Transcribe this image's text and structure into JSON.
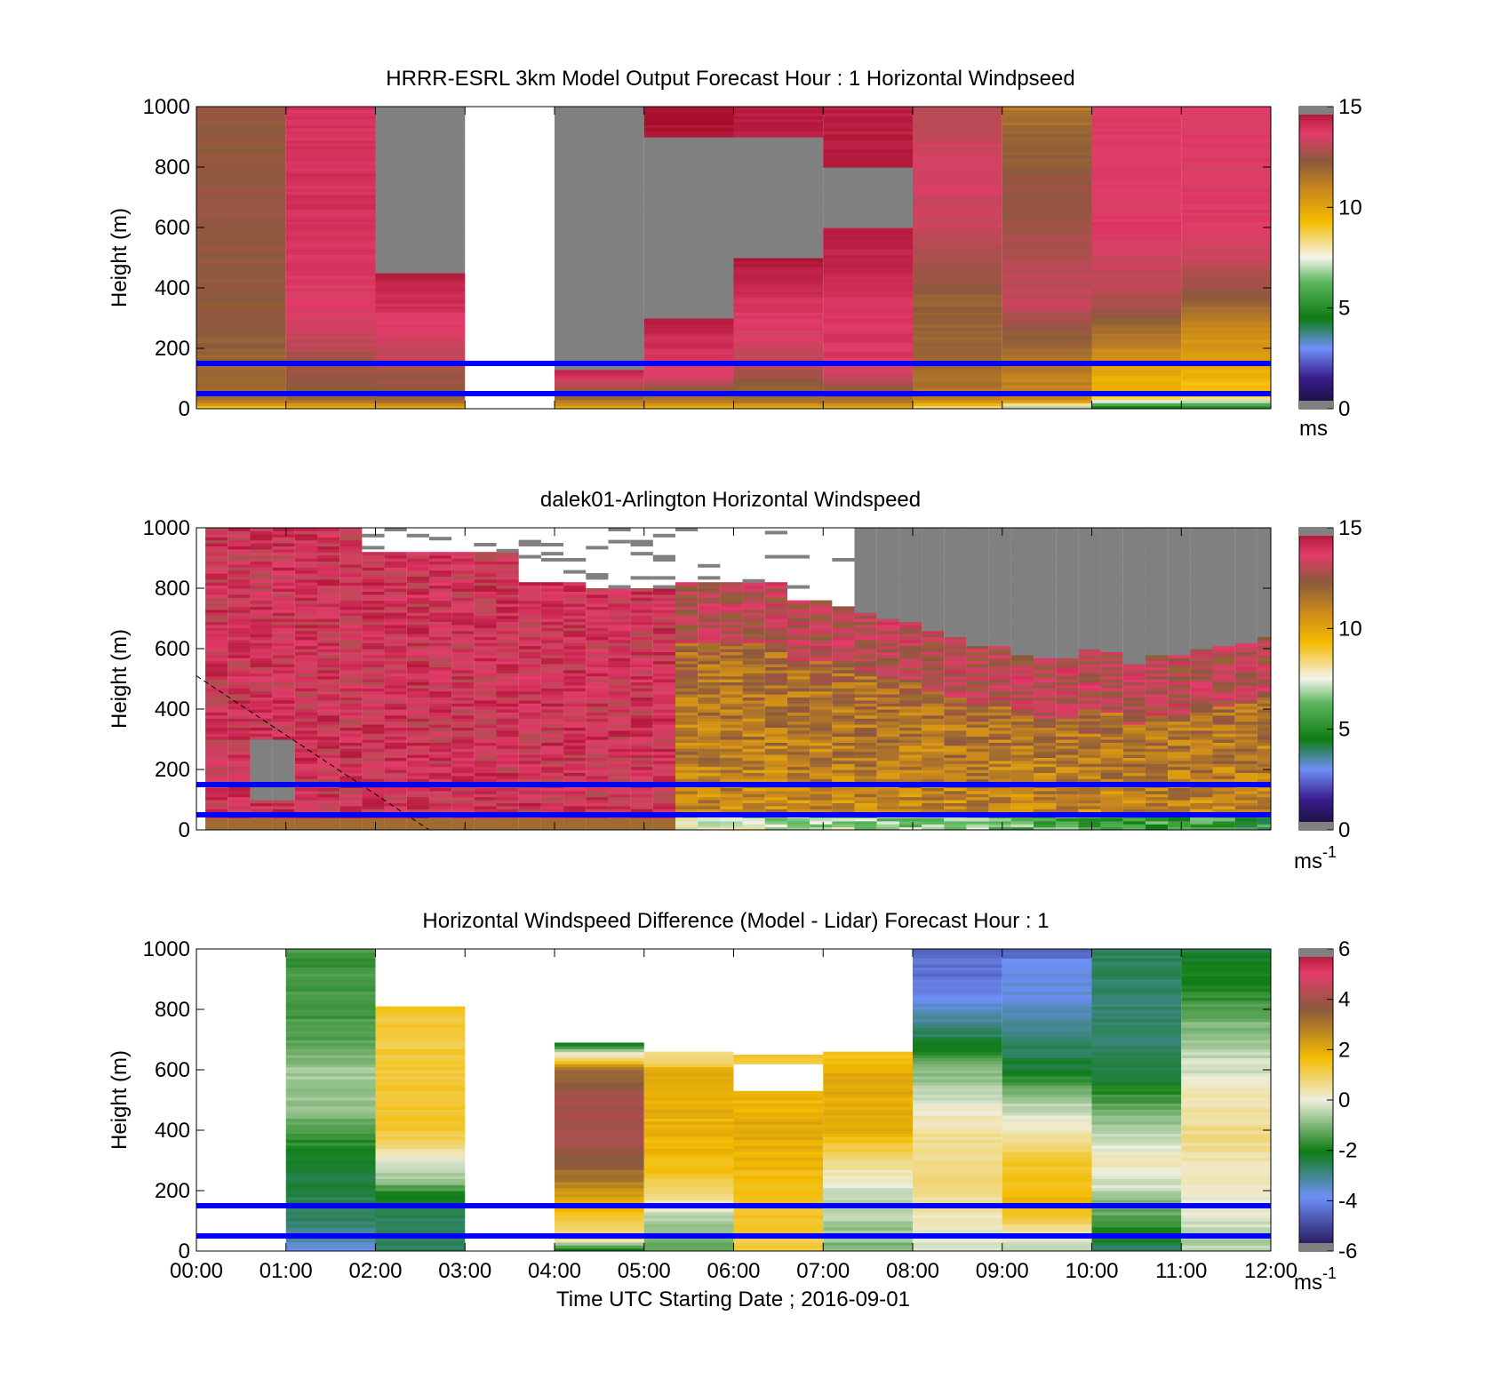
{
  "figure": {
    "xlabel": "Time UTC  Starting Date ; 2016-09-01",
    "x_ticks": [
      "00:00",
      "01:00",
      "02:00",
      "03:00",
      "04:00",
      "05:00",
      "06:00",
      "07:00",
      "08:00",
      "09:00",
      "10:00",
      "11:00",
      "12:00"
    ]
  },
  "colors": {
    "missing": "#808080",
    "reference_line": "#0000ff",
    "speed_scale": [
      "#121030",
      "#3a1b8c",
      "#6f8ff7",
      "#0e7d12",
      "#5eb65e",
      "#f4f4ec",
      "#f4bb00",
      "#cc8a1b",
      "#8b5a3c",
      "#e23c6a",
      "#a30d2a"
    ],
    "diff_scale": [
      "#1c0c4c",
      "#6f8ff7",
      "#0e7d12",
      "#eeeedd",
      "#f4bb00",
      "#8b5a3c",
      "#e23c6a"
    ]
  },
  "chart_data": [
    {
      "type": "heatmap",
      "title": "HRRR-ESRL 3km Model Output   Forecast Hour : 1 Horizontal Windpseed",
      "ylabel": "Height (m)",
      "xlim": [
        0,
        12
      ],
      "ylim": [
        0,
        1000
      ],
      "y_ticks": [
        "0",
        "200",
        "400",
        "600",
        "800",
        "1000"
      ],
      "colorbar": {
        "range": [
          0,
          15
        ],
        "ticks": [
          "0",
          "5",
          "10",
          "15"
        ],
        "unit": "ms"
      },
      "reference_lines_m": [
        50,
        150
      ],
      "bands": [
        {
          "x": [
            0,
            1
          ],
          "gaps": [],
          "stops": [
            [
              0,
              8.5
            ],
            [
              30,
              11.5
            ],
            [
              80,
              11.5
            ],
            [
              300,
              12.0
            ],
            [
              700,
              12.2
            ],
            [
              1000,
              12.0
            ]
          ]
        },
        {
          "x": [
            1,
            2
          ],
          "gaps": [],
          "stops": [
            [
              0,
              8.8
            ],
            [
              30,
              11.8
            ],
            [
              150,
              12.4
            ],
            [
              300,
              13.4
            ],
            [
              600,
              13.8
            ],
            [
              1000,
              13.8
            ]
          ]
        },
        {
          "x": [
            2,
            3
          ],
          "gaps": [
            [
              450,
              1000,
              "missing"
            ]
          ],
          "stops": [
            [
              0,
              9.0
            ],
            [
              30,
              11.6
            ],
            [
              150,
              12.8
            ],
            [
              300,
              13.6
            ],
            [
              450,
              14.6
            ]
          ]
        },
        {
          "x": [
            3,
            4
          ],
          "gaps": [
            [
              0,
              1000,
              "blank"
            ]
          ],
          "stops": []
        },
        {
          "x": [
            4,
            5
          ],
          "gaps": [
            [
              130,
              1000,
              "missing"
            ]
          ],
          "stops": [
            [
              0,
              9.0
            ],
            [
              30,
              11.5
            ],
            [
              130,
              14.3
            ]
          ]
        },
        {
          "x": [
            5,
            6
          ],
          "gaps": [
            [
              300,
              900,
              "missing"
            ]
          ],
          "stops": [
            [
              0,
              9.0
            ],
            [
              30,
              11.0
            ],
            [
              100,
              13.2
            ],
            [
              300,
              14.4
            ],
            [
              900,
              14.8
            ],
            [
              1000,
              14.8
            ]
          ]
        },
        {
          "x": [
            6,
            7
          ],
          "gaps": [
            [
              500,
              900,
              "missing"
            ]
          ],
          "stops": [
            [
              0,
              9.0
            ],
            [
              30,
              11.5
            ],
            [
              200,
              13.2
            ],
            [
              400,
              14.0
            ],
            [
              500,
              14.8
            ],
            [
              900,
              14.5
            ],
            [
              1000,
              14.5
            ]
          ]
        },
        {
          "x": [
            7,
            8
          ],
          "gaps": [
            [
              600,
              800,
              "missing"
            ]
          ],
          "stops": [
            [
              0,
              9.0
            ],
            [
              30,
              11.5
            ],
            [
              150,
              13.6
            ],
            [
              400,
              13.9
            ],
            [
              600,
              14.6
            ],
            [
              800,
              14.8
            ],
            [
              900,
              14.5
            ],
            [
              1000,
              14.4
            ]
          ]
        },
        {
          "x": [
            8,
            9
          ],
          "gaps": [],
          "stops": [
            [
              0,
              7.5
            ],
            [
              30,
              11.0
            ],
            [
              150,
              11.5
            ],
            [
              350,
              11.8
            ],
            [
              600,
              13.0
            ],
            [
              800,
              13.4
            ],
            [
              1000,
              12.6
            ]
          ]
        },
        {
          "x": [
            9,
            10
          ],
          "gaps": [],
          "stops": [
            [
              0,
              6.0
            ],
            [
              30,
              10.5
            ],
            [
              150,
              11.0
            ],
            [
              350,
              13.0
            ],
            [
              600,
              12.4
            ],
            [
              900,
              11.8
            ],
            [
              1000,
              11.0
            ]
          ]
        },
        {
          "x": [
            10,
            11
          ],
          "gaps": [],
          "stops": [
            [
              0,
              4.0
            ],
            [
              40,
              9.0
            ],
            [
              120,
              9.6
            ],
            [
              200,
              10.6
            ],
            [
              350,
              12.6
            ],
            [
              600,
              13.6
            ],
            [
              1000,
              13.4
            ]
          ]
        },
        {
          "x": [
            11,
            12
          ],
          "gaps": [],
          "stops": [
            [
              0,
              4.2
            ],
            [
              40,
              8.6
            ],
            [
              120,
              9.4
            ],
            [
              250,
              10.4
            ],
            [
              400,
              12.4
            ],
            [
              600,
              13.6
            ],
            [
              1000,
              13.4
            ]
          ]
        }
      ]
    },
    {
      "type": "heatmap",
      "title": "dalek01-Arlington  Horizontal Windspeed",
      "ylabel": "Height (m)",
      "xlim": [
        0,
        12
      ],
      "ylim": [
        0,
        1000
      ],
      "y_ticks": [
        "0",
        "200",
        "400",
        "600",
        "800",
        "1000"
      ],
      "colorbar": {
        "range": [
          0,
          15
        ],
        "ticks": [
          "0",
          "5",
          "10",
          "15"
        ],
        "unit": "ms",
        "unit_exponent": "-1"
      },
      "reference_lines_m": [
        50,
        150
      ],
      "dashed_line": {
        "x": [
          0,
          2.6
        ],
        "y": [
          510,
          0
        ]
      },
      "col_width_h": 0.25,
      "col_start_h": 0.1,
      "column_tops_m": [
        1000,
        1000,
        1000,
        1000,
        1000,
        1000,
        1000,
        920,
        920,
        920,
        920,
        920,
        920,
        920,
        820,
        820,
        820,
        800,
        800,
        800,
        800,
        820,
        820,
        820,
        820,
        820,
        760,
        760,
        740,
        720,
        700,
        690,
        660,
        640,
        610,
        610,
        580,
        570,
        570,
        600,
        590,
        550,
        580,
        580,
        600,
        610,
        620,
        640
      ],
      "low_speed_start_h": 5.4,
      "low_missing_rows": {
        "x": [
          0.6,
          1.0
        ],
        "y": [
          100,
          300
        ]
      },
      "upper_missing_h": 7.4
    },
    {
      "type": "heatmap",
      "title": "Horizontal Windspeed Difference (Model - Lidar) Forecast Hour : 1",
      "ylabel": "Height (m)",
      "xlim": [
        0,
        12
      ],
      "ylim": [
        0,
        1000
      ],
      "y_ticks": [
        "0",
        "200",
        "400",
        "600",
        "800",
        "1000"
      ],
      "colorbar": {
        "range": [
          -6,
          6
        ],
        "ticks": [
          "-6",
          "-4",
          "-2",
          "0",
          "2",
          "4",
          "6"
        ],
        "unit": "ms",
        "unit_exponent": "-1"
      },
      "reference_lines_m": [
        50,
        150
      ],
      "bands": [
        {
          "x": [
            0,
            1
          ],
          "gaps": [
            [
              0,
              1000,
              "blank"
            ]
          ],
          "stops": []
        },
        {
          "x": [
            1,
            2
          ],
          "gaps": [],
          "stops": [
            [
              0,
              -4.0
            ],
            [
              80,
              -2.8
            ],
            [
              200,
              -2.4
            ],
            [
              300,
              -2.2
            ],
            [
              450,
              -1.0
            ],
            [
              600,
              -0.6
            ],
            [
              700,
              -1.4
            ],
            [
              1000,
              -1.6
            ]
          ]
        },
        {
          "x": [
            2,
            3
          ],
          "gaps": [
            [
              810,
              1000,
              "blank"
            ]
          ],
          "stops": [
            [
              0,
              -2.8
            ],
            [
              150,
              -2.6
            ],
            [
              250,
              -0.6
            ],
            [
              330,
              0.4
            ],
            [
              400,
              1.6
            ],
            [
              600,
              1.4
            ],
            [
              810,
              1.6
            ]
          ]
        },
        {
          "x": [
            3,
            4
          ],
          "gaps": [
            [
              0,
              1000,
              "blank"
            ]
          ],
          "stops": []
        },
        {
          "x": [
            4,
            5
          ],
          "gaps": [
            [
              690,
              1000,
              "blank"
            ]
          ],
          "stops": [
            [
              0,
              -2.6
            ],
            [
              40,
              0.8
            ],
            [
              100,
              1.5
            ],
            [
              250,
              3.5
            ],
            [
              350,
              4.6
            ],
            [
              500,
              4.6
            ],
            [
              600,
              3.6
            ],
            [
              690,
              -2.4
            ]
          ]
        },
        {
          "x": [
            5,
            6
          ],
          "gaps": [
            [
              660,
              1000,
              "blank"
            ]
          ],
          "stops": [
            [
              0,
              -1.5
            ],
            [
              120,
              -0.4
            ],
            [
              200,
              1.2
            ],
            [
              300,
              2.0
            ],
            [
              600,
              2.4
            ],
            [
              620,
              1.2
            ],
            [
              660,
              0.6
            ]
          ]
        },
        {
          "x": [
            6,
            7
          ],
          "gaps": [
            [
              530,
              620,
              "blank"
            ],
            [
              650,
              1000,
              "blank"
            ]
          ],
          "stops": [
            [
              0,
              1.4
            ],
            [
              200,
              1.8
            ],
            [
              400,
              2.4
            ],
            [
              530,
              2.0
            ],
            [
              620,
              1.6
            ],
            [
              650,
              1.4
            ]
          ]
        },
        {
          "x": [
            7,
            8
          ],
          "gaps": [
            [
              660,
              1000,
              "blank"
            ]
          ],
          "stops": [
            [
              0,
              -1.0
            ],
            [
              200,
              -0.2
            ],
            [
              300,
              0.8
            ],
            [
              400,
              2.2
            ],
            [
              600,
              2.4
            ],
            [
              660,
              1.6
            ]
          ]
        },
        {
          "x": [
            8,
            9
          ],
          "gaps": [],
          "stops": [
            [
              0,
              -0.4
            ],
            [
              200,
              0.8
            ],
            [
              400,
              0.6
            ],
            [
              500,
              -0.2
            ],
            [
              600,
              -1.0
            ],
            [
              700,
              -2.4
            ],
            [
              800,
              -3.6
            ],
            [
              900,
              -4.4
            ],
            [
              1000,
              -4.6
            ]
          ]
        },
        {
          "x": [
            9,
            10
          ],
          "gaps": [],
          "stops": [
            [
              0,
              -0.6
            ],
            [
              150,
              2.0
            ],
            [
              300,
              1.6
            ],
            [
              400,
              0.2
            ],
            [
              500,
              -0.6
            ],
            [
              600,
              -2.2
            ],
            [
              750,
              -3.2
            ],
            [
              850,
              -3.8
            ],
            [
              950,
              -4.0
            ],
            [
              1000,
              -4.8
            ]
          ]
        },
        {
          "x": [
            10,
            11
          ],
          "gaps": [],
          "stops": [
            [
              0,
              -2.8
            ],
            [
              200,
              -0.4
            ],
            [
              300,
              0.4
            ],
            [
              400,
              -0.6
            ],
            [
              500,
              -1.4
            ],
            [
              600,
              -2.6
            ],
            [
              800,
              -2.8
            ],
            [
              1000,
              -2.6
            ]
          ]
        },
        {
          "x": [
            11,
            12
          ],
          "gaps": [],
          "stops": [
            [
              0,
              -0.6
            ],
            [
              200,
              0.2
            ],
            [
              400,
              0.8
            ],
            [
              500,
              0.4
            ],
            [
              600,
              -0.2
            ],
            [
              700,
              -0.6
            ],
            [
              800,
              -1.4
            ],
            [
              1000,
              -2.4
            ]
          ]
        }
      ]
    }
  ]
}
